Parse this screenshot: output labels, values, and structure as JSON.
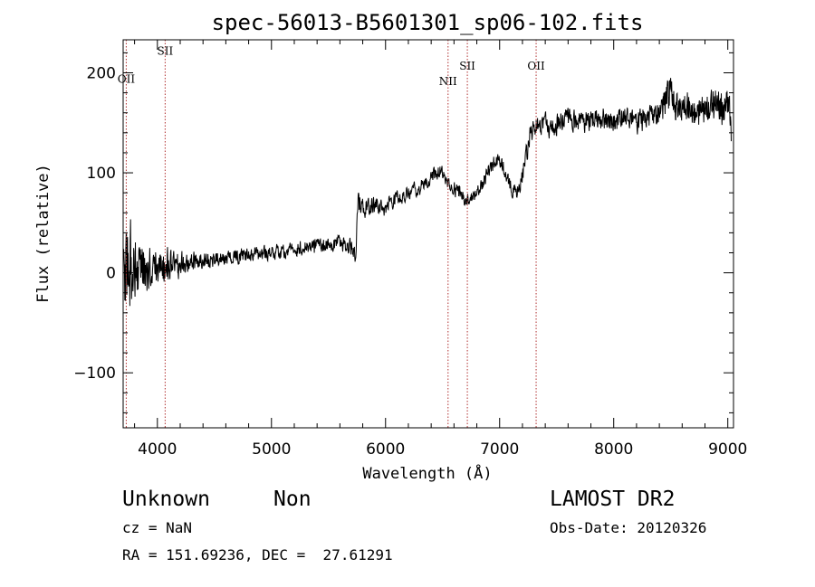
{
  "chart_data": {
    "type": "line",
    "title": "spec-56013-B5601301_sp06-102.fits",
    "xlabel": "Wavelength (Å)",
    "ylabel": "Flux (relative)",
    "xlim": [
      3700,
      9050
    ],
    "ylim": [
      -155,
      233
    ],
    "xticks": [
      4000,
      5000,
      6000,
      7000,
      8000,
      9000
    ],
    "xtick_labels": [
      "4000",
      "5000",
      "6000",
      "7000",
      "8000",
      "9000"
    ],
    "yticks": [
      -100,
      0,
      100,
      200
    ],
    "ytick_labels": [
      "−100",
      "0",
      "100",
      "200"
    ],
    "grid": false,
    "line_color": "#000000",
    "marker_color": "#b03030",
    "lines": [
      {
        "label": "OII",
        "x": 3727,
        "label_y": 190
      },
      {
        "label": "SII",
        "x": 4068,
        "label_y": 218
      },
      {
        "label": "NII",
        "x": 6548,
        "label_y": 188
      },
      {
        "label": "SII",
        "x": 6717,
        "label_y": 203
      },
      {
        "label": "OII",
        "x": 7320,
        "label_y": 203
      }
    ],
    "series": [
      {
        "x": [
          3700,
          3750,
          3800,
          3850,
          3900,
          3950,
          4000,
          4100,
          4200,
          4300,
          4400,
          4500,
          4600,
          4700,
          4800,
          4900,
          5000,
          5100,
          5200,
          5300,
          5400,
          5500,
          5600,
          5700,
          5740,
          5760,
          5800,
          5900,
          6000,
          6100,
          6200,
          6300,
          6400,
          6450,
          6500,
          6550,
          6600,
          6650,
          6700,
          6750,
          6800,
          6850,
          6900,
          6950,
          7000,
          7050,
          7100,
          7150,
          7200,
          7250,
          7300,
          7350,
          7400,
          7450,
          7500,
          7600,
          7700,
          7800,
          7900,
          8000,
          8100,
          8200,
          8300,
          8400,
          8450,
          8500,
          8550,
          8600,
          8700,
          8800,
          8900,
          9000,
          9030
        ],
        "y": [
          0,
          5,
          3,
          2,
          4,
          5,
          6,
          8,
          8,
          10,
          12,
          14,
          15,
          17,
          18,
          19,
          20,
          22,
          24,
          25,
          27,
          28,
          30,
          25,
          22,
          70,
          65,
          68,
          65,
          75,
          80,
          85,
          95,
          100,
          102,
          90,
          85,
          80,
          72,
          75,
          80,
          90,
          100,
          110,
          115,
          100,
          85,
          80,
          95,
          130,
          145,
          150,
          148,
          140,
          150,
          155,
          150,
          152,
          155,
          150,
          155,
          150,
          155,
          160,
          170,
          180,
          165,
          170,
          160,
          165,
          170,
          160,
          145
        ],
        "noise": [
          40,
          70,
          60,
          40,
          30,
          28,
          26,
          22,
          18,
          14,
          12,
          10,
          10,
          10,
          10,
          10,
          10,
          10,
          10,
          10,
          10,
          10,
          10,
          12,
          15,
          15,
          14,
          12,
          10,
          10,
          10,
          10,
          10,
          10,
          10,
          10,
          10,
          10,
          8,
          8,
          8,
          10,
          10,
          10,
          10,
          10,
          10,
          10,
          14,
          15,
          16,
          15,
          15,
          16,
          15,
          14,
          14,
          14,
          14,
          15,
          15,
          15,
          16,
          20,
          24,
          30,
          24,
          22,
          22,
          24,
          26,
          28,
          30
        ]
      }
    ]
  },
  "footer": {
    "object_type": "Unknown",
    "object_subtype": "Non",
    "survey": "LAMOST DR2",
    "redshift": "cz = NaN",
    "obs_date": "Obs-Date: 20120326",
    "coords": "RA = 151.69236, DEC =  27.61291"
  }
}
